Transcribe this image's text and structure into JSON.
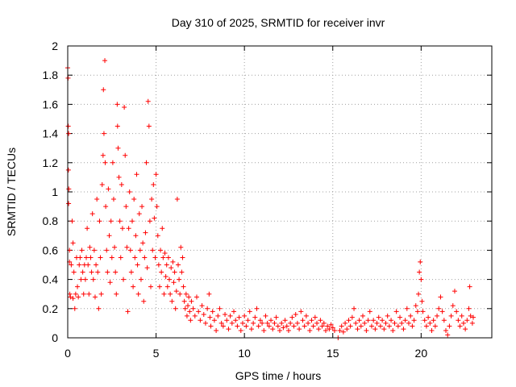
{
  "chart_data": {
    "type": "scatter",
    "title": "Day 310 of 2025, SRMTID for receiver invr",
    "xlabel": "GPS time / hours",
    "ylabel": "SRMTID / TECUs",
    "xlim": [
      0,
      24
    ],
    "ylim": [
      0,
      2
    ],
    "xticks": [
      0,
      5,
      10,
      15,
      20
    ],
    "xtick_labels": [
      "0",
      "5",
      "10",
      "15",
      "20"
    ],
    "yticks": [
      0,
      0.2,
      0.4,
      0.6,
      0.8,
      1,
      1.2,
      1.4,
      1.6,
      1.8,
      2
    ],
    "ytick_labels": [
      "0",
      "0.2",
      "0.4",
      "0.6",
      "0.8",
      "1",
      "1.2",
      "1.4",
      "1.6",
      "1.8",
      "2"
    ],
    "grid": true,
    "marker": "+",
    "color": "#ff0000",
    "series": [
      {
        "name": "SRMTID",
        "points": [
          [
            0.0,
            1.85
          ],
          [
            0.02,
            1.78
          ],
          [
            0.03,
            1.45
          ],
          [
            0.05,
            1.4
          ],
          [
            0.04,
            1.15
          ],
          [
            0.06,
            1.02
          ],
          [
            0.05,
            0.92
          ],
          [
            0.1,
            0.6
          ],
          [
            0.1,
            0.52
          ],
          [
            0.12,
            0.3
          ],
          [
            0.15,
            0.28
          ],
          [
            0.2,
            0.5
          ],
          [
            0.25,
            0.8
          ],
          [
            0.3,
            0.65
          ],
          [
            0.3,
            0.27
          ],
          [
            0.35,
            0.45
          ],
          [
            0.4,
            0.2
          ],
          [
            0.45,
            0.3
          ],
          [
            0.5,
            0.55
          ],
          [
            0.55,
            0.35
          ],
          [
            0.6,
            0.28
          ],
          [
            0.65,
            0.5
          ],
          [
            0.7,
            0.55
          ],
          [
            0.75,
            0.4
          ],
          [
            0.8,
            0.6
          ],
          [
            0.85,
            0.45
          ],
          [
            0.9,
            0.3
          ],
          [
            0.95,
            0.5
          ],
          [
            1.0,
            0.4
          ],
          [
            1.05,
            0.55
          ],
          [
            1.1,
            0.75
          ],
          [
            1.15,
            0.5
          ],
          [
            1.2,
            0.3
          ],
          [
            1.25,
            0.62
          ],
          [
            1.3,
            0.55
          ],
          [
            1.35,
            0.45
          ],
          [
            1.4,
            0.85
          ],
          [
            1.45,
            0.4
          ],
          [
            1.5,
            0.6
          ],
          [
            1.55,
            0.28
          ],
          [
            1.6,
            0.5
          ],
          [
            1.65,
            0.95
          ],
          [
            1.7,
            0.45
          ],
          [
            1.75,
            0.2
          ],
          [
            1.8,
            0.8
          ],
          [
            1.85,
            0.55
          ],
          [
            1.9,
            0.3
          ],
          [
            1.95,
            1.05
          ],
          [
            2.0,
            1.25
          ],
          [
            2.02,
            1.7
          ],
          [
            2.05,
            1.4
          ],
          [
            2.1,
            1.9
          ],
          [
            2.12,
            1.2
          ],
          [
            2.15,
            0.9
          ],
          [
            2.2,
            0.6
          ],
          [
            2.25,
            0.45
          ],
          [
            2.3,
            1.02
          ],
          [
            2.35,
            0.7
          ],
          [
            2.4,
            0.38
          ],
          [
            2.45,
            0.8
          ],
          [
            2.5,
            0.55
          ],
          [
            2.55,
            1.2
          ],
          [
            2.6,
            0.95
          ],
          [
            2.65,
            0.62
          ],
          [
            2.7,
            0.45
          ],
          [
            2.75,
            0.3
          ],
          [
            2.8,
            1.6
          ],
          [
            2.82,
            1.45
          ],
          [
            2.85,
            1.3
          ],
          [
            2.9,
            1.1
          ],
          [
            2.95,
            0.8
          ],
          [
            3.0,
            0.55
          ],
          [
            3.05,
            1.05
          ],
          [
            3.1,
            0.75
          ],
          [
            3.15,
            0.4
          ],
          [
            3.2,
            1.58
          ],
          [
            3.25,
            1.25
          ],
          [
            3.3,
            0.9
          ],
          [
            3.35,
            0.62
          ],
          [
            3.4,
            0.18
          ],
          [
            3.45,
            0.75
          ],
          [
            3.5,
            1.0
          ],
          [
            3.55,
            0.6
          ],
          [
            3.6,
            0.45
          ],
          [
            3.65,
            0.8
          ],
          [
            3.7,
            0.35
          ],
          [
            3.75,
            0.95
          ],
          [
            3.8,
            0.55
          ],
          [
            3.85,
            0.7
          ],
          [
            3.9,
            1.12
          ],
          [
            3.95,
            0.5
          ],
          [
            4.0,
            0.3
          ],
          [
            4.05,
            0.85
          ],
          [
            4.1,
            0.6
          ],
          [
            4.15,
            0.4
          ],
          [
            4.2,
            0.9
          ],
          [
            4.25,
            0.65
          ],
          [
            4.3,
            0.25
          ],
          [
            4.35,
            0.55
          ],
          [
            4.4,
            0.72
          ],
          [
            4.45,
            1.2
          ],
          [
            4.5,
            0.48
          ],
          [
            4.55,
            1.62
          ],
          [
            4.6,
            1.45
          ],
          [
            4.65,
            0.8
          ],
          [
            4.7,
            0.35
          ],
          [
            4.75,
            0.95
          ],
          [
            4.8,
            0.6
          ],
          [
            4.85,
            1.05
          ],
          [
            4.9,
            0.82
          ],
          [
            4.95,
            0.55
          ],
          [
            5.0,
            1.12
          ],
          [
            5.05,
            0.9
          ],
          [
            5.1,
            0.7
          ],
          [
            5.15,
            0.5
          ],
          [
            5.2,
            0.35
          ],
          [
            5.25,
            0.6
          ],
          [
            5.3,
            0.45
          ],
          [
            5.35,
            0.75
          ],
          [
            5.4,
            0.55
          ],
          [
            5.45,
            0.3
          ],
          [
            5.5,
            0.58
          ],
          [
            5.55,
            0.42
          ],
          [
            5.6,
            0.5
          ],
          [
            5.65,
            0.35
          ],
          [
            5.7,
            0.55
          ],
          [
            5.75,
            0.4
          ],
          [
            5.8,
            0.3
          ],
          [
            5.85,
            0.48
          ],
          [
            5.9,
            0.25
          ],
          [
            5.95,
            0.52
          ],
          [
            6.0,
            0.38
          ],
          [
            6.05,
            0.45
          ],
          [
            6.1,
            0.2
          ],
          [
            6.15,
            0.32
          ],
          [
            6.2,
            0.95
          ],
          [
            6.25,
            0.5
          ],
          [
            6.3,
            0.4
          ],
          [
            6.35,
            0.3
          ],
          [
            6.4,
            0.62
          ],
          [
            6.45,
            0.45
          ],
          [
            6.5,
            0.55
          ],
          [
            6.55,
            0.35
          ],
          [
            6.6,
            0.25
          ],
          [
            6.65,
            0.2
          ],
          [
            6.7,
            0.3
          ],
          [
            6.75,
            0.15
          ],
          [
            6.8,
            0.22
          ],
          [
            6.85,
            0.28
          ],
          [
            6.9,
            0.18
          ],
          [
            6.95,
            0.12
          ],
          [
            7.0,
            0.25
          ],
          [
            7.1,
            0.2
          ],
          [
            7.2,
            0.15
          ],
          [
            7.3,
            0.28
          ],
          [
            7.4,
            0.18
          ],
          [
            7.5,
            0.12
          ],
          [
            7.6,
            0.22
          ],
          [
            7.7,
            0.16
          ],
          [
            7.8,
            0.1
          ],
          [
            7.9,
            0.2
          ],
          [
            8.0,
            0.3
          ],
          [
            8.05,
            0.14
          ],
          [
            8.1,
            0.08
          ],
          [
            8.2,
            0.18
          ],
          [
            8.3,
            0.12
          ],
          [
            8.4,
            0.05
          ],
          [
            8.5,
            0.15
          ],
          [
            8.6,
            0.2
          ],
          [
            8.7,
            0.1
          ],
          [
            8.8,
            0.08
          ],
          [
            8.9,
            0.16
          ],
          [
            9.0,
            0.12
          ],
          [
            9.1,
            0.06
          ],
          [
            9.2,
            0.15
          ],
          [
            9.3,
            0.1
          ],
          [
            9.4,
            0.18
          ],
          [
            9.5,
            0.12
          ],
          [
            9.6,
            0.08
          ],
          [
            9.7,
            0.14
          ],
          [
            9.8,
            0.05
          ],
          [
            9.9,
            0.1
          ],
          [
            10.0,
            0.15
          ],
          [
            10.1,
            0.08
          ],
          [
            10.2,
            0.12
          ],
          [
            10.3,
            0.18
          ],
          [
            10.4,
            0.06
          ],
          [
            10.5,
            0.1
          ],
          [
            10.6,
            0.14
          ],
          [
            10.7,
            0.2
          ],
          [
            10.8,
            0.08
          ],
          [
            10.9,
            0.12
          ],
          [
            11.0,
            0.1
          ],
          [
            11.1,
            0.05
          ],
          [
            11.2,
            0.15
          ],
          [
            11.3,
            0.1
          ],
          [
            11.4,
            0.08
          ],
          [
            11.5,
            0.12
          ],
          [
            11.6,
            0.06
          ],
          [
            11.7,
            0.1
          ],
          [
            11.8,
            0.14
          ],
          [
            11.9,
            0.08
          ],
          [
            12.0,
            0.05
          ],
          [
            12.1,
            0.1
          ],
          [
            12.2,
            0.07
          ],
          [
            12.3,
            0.12
          ],
          [
            12.4,
            0.08
          ],
          [
            12.5,
            0.05
          ],
          [
            12.6,
            0.1
          ],
          [
            12.7,
            0.14
          ],
          [
            12.8,
            0.08
          ],
          [
            12.9,
            0.16
          ],
          [
            13.0,
            0.1
          ],
          [
            13.1,
            0.06
          ],
          [
            13.2,
            0.18
          ],
          [
            13.3,
            0.12
          ],
          [
            13.4,
            0.08
          ],
          [
            13.5,
            0.15
          ],
          [
            13.6,
            0.1
          ],
          [
            13.7,
            0.05
          ],
          [
            13.8,
            0.12
          ],
          [
            13.9,
            0.08
          ],
          [
            14.0,
            0.14
          ],
          [
            14.1,
            0.1
          ],
          [
            14.2,
            0.06
          ],
          [
            14.3,
            0.12
          ],
          [
            14.4,
            0.08
          ],
          [
            14.5,
            0.1
          ],
          [
            14.6,
            0.05
          ],
          [
            14.7,
            0.08
          ],
          [
            14.8,
            0.06
          ],
          [
            14.9,
            0.09
          ],
          [
            15.0,
            0.07
          ],
          [
            15.1,
            0.05
          ],
          [
            15.3,
            0.0
          ],
          [
            15.4,
            0.05
          ],
          [
            15.5,
            0.08
          ],
          [
            15.6,
            0.04
          ],
          [
            15.7,
            0.1
          ],
          [
            15.8,
            0.06
          ],
          [
            15.9,
            0.12
          ],
          [
            16.0,
            0.08
          ],
          [
            16.1,
            0.14
          ],
          [
            16.2,
            0.2
          ],
          [
            16.3,
            0.1
          ],
          [
            16.4,
            0.06
          ],
          [
            16.5,
            0.12
          ],
          [
            16.6,
            0.08
          ],
          [
            16.7,
            0.15
          ],
          [
            16.8,
            0.1
          ],
          [
            16.9,
            0.05
          ],
          [
            17.0,
            0.12
          ],
          [
            17.1,
            0.18
          ],
          [
            17.2,
            0.08
          ],
          [
            17.3,
            0.12
          ],
          [
            17.4,
            0.06
          ],
          [
            17.5,
            0.1
          ],
          [
            17.6,
            0.14
          ],
          [
            17.7,
            0.08
          ],
          [
            17.8,
            0.12
          ],
          [
            17.9,
            0.06
          ],
          [
            18.0,
            0.1
          ],
          [
            18.1,
            0.15
          ],
          [
            18.2,
            0.08
          ],
          [
            18.3,
            0.12
          ],
          [
            18.4,
            0.05
          ],
          [
            18.5,
            0.1
          ],
          [
            18.6,
            0.18
          ],
          [
            18.7,
            0.08
          ],
          [
            18.8,
            0.14
          ],
          [
            18.9,
            0.1
          ],
          [
            19.0,
            0.06
          ],
          [
            19.1,
            0.12
          ],
          [
            19.2,
            0.2
          ],
          [
            19.3,
            0.1
          ],
          [
            19.4,
            0.15
          ],
          [
            19.5,
            0.08
          ],
          [
            19.6,
            0.12
          ],
          [
            19.7,
            0.22
          ],
          [
            19.8,
            0.18
          ],
          [
            19.85,
            0.3
          ],
          [
            19.9,
            0.45
          ],
          [
            19.95,
            0.52
          ],
          [
            20.0,
            0.4
          ],
          [
            20.05,
            0.25
          ],
          [
            20.1,
            0.18
          ],
          [
            20.2,
            0.12
          ],
          [
            20.3,
            0.08
          ],
          [
            20.4,
            0.14
          ],
          [
            20.5,
            0.1
          ],
          [
            20.6,
            0.05
          ],
          [
            20.7,
            0.12
          ],
          [
            20.8,
            0.08
          ],
          [
            20.9,
            0.15
          ],
          [
            21.0,
            0.2
          ],
          [
            21.1,
            0.28
          ],
          [
            21.2,
            0.18
          ],
          [
            21.3,
            0.12
          ],
          [
            21.4,
            0.05
          ],
          [
            21.5,
            0.02
          ],
          [
            21.6,
            0.08
          ],
          [
            21.7,
            0.15
          ],
          [
            21.8,
            0.22
          ],
          [
            21.9,
            0.32
          ],
          [
            22.0,
            0.18
          ],
          [
            22.1,
            0.12
          ],
          [
            22.2,
            0.08
          ],
          [
            22.3,
            0.15
          ],
          [
            22.4,
            0.1
          ],
          [
            22.5,
            0.06
          ],
          [
            22.6,
            0.12
          ],
          [
            22.7,
            0.2
          ],
          [
            22.75,
            0.35
          ],
          [
            22.8,
            0.15
          ],
          [
            22.9,
            0.1
          ],
          [
            22.95,
            0.14
          ]
        ]
      }
    ]
  }
}
